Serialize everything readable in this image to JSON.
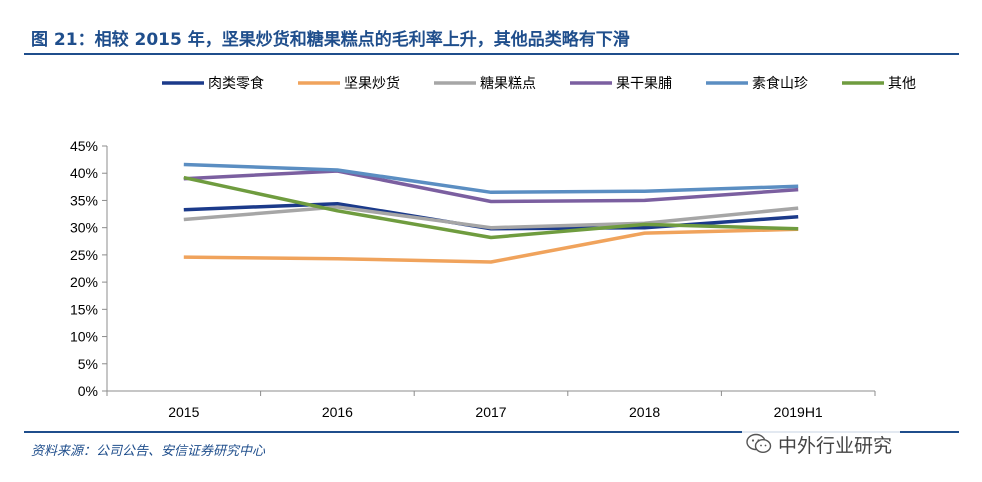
{
  "header": {
    "title": "图 21：相较 2015 年，坚果炒货和糖果糕点的毛利率上升，其他品类略有下滑"
  },
  "footer": {
    "source": "资料来源：公司公告、安信证券研究中心"
  },
  "watermark": {
    "text": "中外行业研究",
    "icon": "wechat-icon"
  },
  "chart_data": {
    "type": "line",
    "categories": [
      "2015",
      "2016",
      "2017",
      "2018",
      "2019H1"
    ],
    "ylim": [
      0,
      45
    ],
    "y_unit": "%",
    "y_ticks": [
      "0%",
      "5%",
      "10%",
      "15%",
      "20%",
      "25%",
      "30%",
      "35%",
      "40%",
      "45%"
    ],
    "grid": false,
    "legend_position": "top",
    "series": [
      {
        "name": "肉类零食",
        "color": "#1b3a8a",
        "values": [
          33.3,
          34.4,
          29.8,
          30.0,
          32.0
        ]
      },
      {
        "name": "坚果炒货",
        "color": "#f0a35c",
        "values": [
          24.6,
          24.3,
          23.7,
          29.0,
          29.7
        ]
      },
      {
        "name": "糖果糕点",
        "color": "#a6a6a6",
        "values": [
          31.5,
          33.8,
          30.0,
          30.8,
          33.6
        ]
      },
      {
        "name": "果干果脯",
        "color": "#7b5fa0",
        "values": [
          39.0,
          40.4,
          34.8,
          35.0,
          37.0
        ]
      },
      {
        "name": "素食山珍",
        "color": "#5b8ec2",
        "values": [
          41.6,
          40.6,
          36.5,
          36.7,
          37.6
        ]
      },
      {
        "name": "其他",
        "color": "#6f9c3f",
        "values": [
          39.2,
          33.1,
          28.2,
          30.6,
          29.8
        ]
      }
    ]
  }
}
